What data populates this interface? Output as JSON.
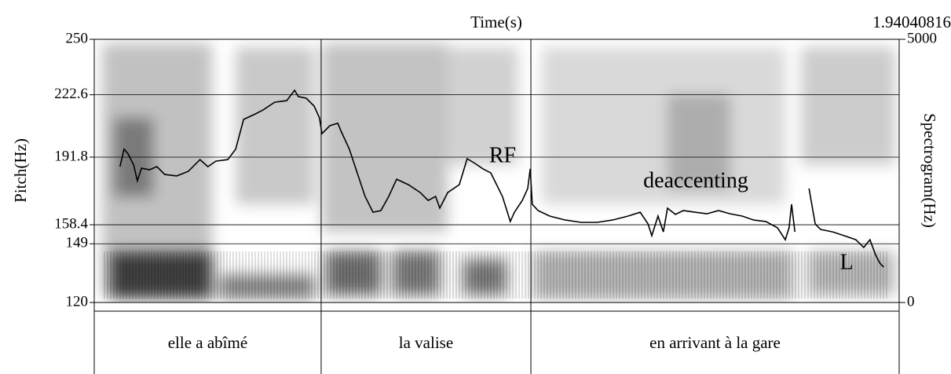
{
  "chart_data": {
    "type": "line",
    "title": "Time(s)",
    "ylabel": "Pitch(Hz)",
    "y2label": "Spectrogram(Hz)",
    "xlim": [
      0,
      1.94040816
    ],
    "ylim": [
      120,
      250
    ],
    "yticks": [
      120,
      149,
      158.4,
      191.8,
      222.6,
      250
    ],
    "y2lim": [
      0,
      5000
    ],
    "y2ticks": [
      0,
      5000
    ],
    "grid": true,
    "color": "#000000",
    "x": [
      0.062,
      0.072,
      0.082,
      0.095,
      0.104,
      0.114,
      0.133,
      0.151,
      0.17,
      0.199,
      0.227,
      0.255,
      0.274,
      0.293,
      0.322,
      0.341,
      0.36,
      0.388,
      0.407,
      0.435,
      0.464,
      0.483,
      0.492,
      0.511,
      0.53,
      0.543,
      0.549,
      0.568,
      0.587,
      0.596,
      0.615,
      0.634,
      0.653,
      0.672,
      0.691,
      0.71,
      0.729,
      0.757,
      0.786,
      0.805,
      0.823,
      0.833,
      0.852,
      0.88,
      0.899,
      0.918,
      0.937,
      0.956,
      0.984,
      1.003,
      1.013,
      1.032,
      1.045,
      1.051,
      1.056,
      1.07,
      1.098,
      1.136,
      1.174,
      1.212,
      1.249,
      1.287,
      1.316,
      1.335,
      1.344,
      1.359,
      1.372,
      1.382,
      1.401,
      1.42,
      1.448,
      1.477,
      1.505,
      1.533,
      1.562,
      1.59,
      1.619,
      1.647,
      1.666,
      1.675,
      1.681,
      1.689,
      1.705,
      1.723,
      1.738,
      1.751,
      1.78,
      1.808,
      1.836,
      1.855,
      1.87,
      1.884,
      1.894,
      1.903
    ],
    "values": [
      187.1,
      195.7,
      193.3,
      187.9,
      180.1,
      186.3,
      185.6,
      187.1,
      183.2,
      182.5,
      184.8,
      190.6,
      187.1,
      189.8,
      190.6,
      195.7,
      210.4,
      213.1,
      215.1,
      218.9,
      219.7,
      224.8,
      221.7,
      220.9,
      217.0,
      211.2,
      203.4,
      207.3,
      208.5,
      204.2,
      195.7,
      184.0,
      172.4,
      164.6,
      165.4,
      172.4,
      180.9,
      178.2,
      174.3,
      170.4,
      172.4,
      166.6,
      174.3,
      178.2,
      191.0,
      188.7,
      186.0,
      184.0,
      172.4,
      160.0,
      164.6,
      170.4,
      176.3,
      186.0,
      168.5,
      165.4,
      162.7,
      160.7,
      159.6,
      159.6,
      160.7,
      162.7,
      164.6,
      158.8,
      153.0,
      162.7,
      154.9,
      166.6,
      163.5,
      165.4,
      164.6,
      163.8,
      165.4,
      163.8,
      162.7,
      160.7,
      160.0,
      156.9,
      151.0,
      156.9,
      168.5,
      154.9,
      null,
      176.3,
      158.8,
      156.1,
      154.9,
      153.0,
      151.0,
      147.2,
      151.0,
      143.3,
      139.4,
      137.5
    ],
    "annotations": [
      "RF",
      "deaccenting",
      "L"
    ],
    "tier": [
      {
        "label": "elle a abîmé",
        "start": 0,
        "end": 0.547
      },
      {
        "label": "la valise",
        "start": 0.547,
        "end": 1.0526
      },
      {
        "label": "en arrivant à la gare",
        "start": 1.0526,
        "end": 1.94040816
      }
    ]
  }
}
